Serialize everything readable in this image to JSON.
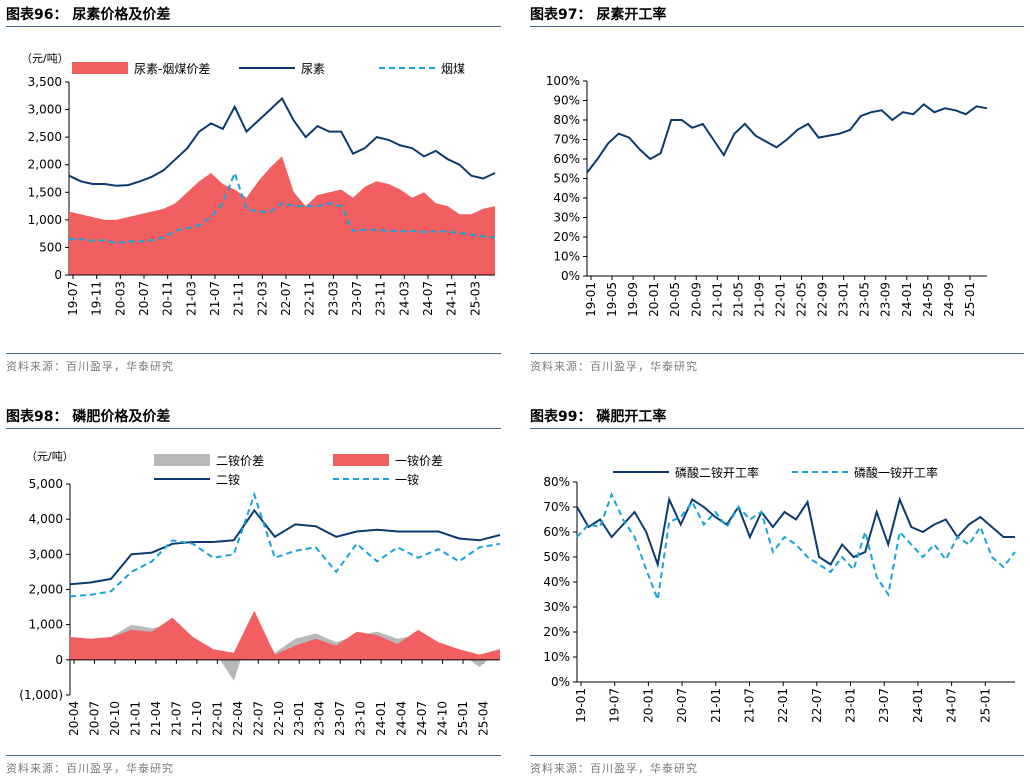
{
  "colors": {
    "navy": "#0d3a6e",
    "cyan": "#1aa3d9",
    "red": "#f25f61",
    "gray": "#b8b8b8",
    "rule": "#4a6a8a"
  },
  "panels": [
    {
      "title": "图表96：  尿素价格及价差",
      "source": "资料来源：百川盈孚，华泰研究"
    },
    {
      "title": "图表97：  尿素开工率",
      "source": "资料来源：百川盈孚，华泰研究"
    },
    {
      "title": "图表98：  磷肥价格及价差",
      "source": "资料来源：百川盈孚，华泰研究"
    },
    {
      "title": "图表99：  磷肥开工率",
      "source": "资料来源：百川盈孚，华泰研究"
    }
  ],
  "chart_data": [
    {
      "type": "line",
      "unit_label": "（元/吨）",
      "ylim": [
        0,
        3500
      ],
      "yticks": [
        "0",
        "500",
        "1,000",
        "1,500",
        "2,000",
        "2,500",
        "3,000",
        "3,500"
      ],
      "xticks": [
        "19-07",
        "19-11",
        "20-03",
        "20-07",
        "20-11",
        "21-03",
        "21-07",
        "21-11",
        "22-03",
        "22-07",
        "22-11",
        "23-03",
        "23-07",
        "23-11",
        "24-03",
        "24-07",
        "24-11",
        "25-03"
      ],
      "x": [
        "19-07",
        "19-09",
        "19-11",
        "20-01",
        "20-03",
        "20-05",
        "20-07",
        "20-09",
        "20-11",
        "21-01",
        "21-03",
        "21-05",
        "21-07",
        "21-09",
        "21-10",
        "21-11",
        "22-01",
        "22-03",
        "22-05",
        "22-07",
        "22-09",
        "22-11",
        "23-01",
        "23-03",
        "23-05",
        "23-07",
        "23-09",
        "23-11",
        "24-01",
        "24-03",
        "24-05",
        "24-07",
        "24-09",
        "24-11",
        "25-01",
        "25-03",
        "25-05"
      ],
      "legend": [
        "尿素-烟煤价差",
        "尿素",
        "烟煤"
      ],
      "series": [
        {
          "name": "尿素-烟煤价差",
          "style": "area",
          "values": [
            1150,
            1100,
            1050,
            1000,
            1000,
            1050,
            1100,
            1150,
            1200,
            1300,
            1500,
            1700,
            1850,
            1650,
            1550,
            1400,
            1700,
            1950,
            2150,
            1500,
            1250,
            1450,
            1500,
            1550,
            1400,
            1600,
            1700,
            1650,
            1550,
            1400,
            1500,
            1300,
            1250,
            1100,
            1100,
            1200,
            1250
          ]
        },
        {
          "name": "尿素",
          "style": "solid",
          "values": [
            1800,
            1700,
            1650,
            1650,
            1620,
            1630,
            1700,
            1780,
            1900,
            2100,
            2300,
            2600,
            2750,
            2650,
            3050,
            2600,
            2800,
            3000,
            3200,
            2800,
            2500,
            2700,
            2600,
            2600,
            2200,
            2300,
            2500,
            2450,
            2350,
            2300,
            2150,
            2250,
            2100,
            2000,
            1800,
            1750,
            1850
          ]
        },
        {
          "name": "烟煤",
          "style": "dashed",
          "values": [
            650,
            650,
            620,
            630,
            580,
            610,
            610,
            630,
            680,
            800,
            850,
            900,
            1050,
            1300,
            1850,
            1200,
            1150,
            1150,
            1300,
            1250,
            1250,
            1250,
            1300,
            1250,
            800,
            820,
            820,
            800,
            790,
            800,
            780,
            790,
            790,
            760,
            730,
            700,
            680
          ]
        }
      ]
    },
    {
      "type": "line",
      "ylim": [
        0,
        100
      ],
      "yticks": [
        "0%",
        "10%",
        "20%",
        "30%",
        "40%",
        "50%",
        "60%",
        "70%",
        "80%",
        "90%",
        "100%"
      ],
      "xticks": [
        "19-01",
        "19-05",
        "19-09",
        "20-01",
        "20-05",
        "20-09",
        "21-01",
        "21-05",
        "21-09",
        "22-01",
        "22-05",
        "22-09",
        "23-01",
        "23-05",
        "23-09",
        "24-01",
        "24-05",
        "24-09",
        "25-01"
      ],
      "x": [
        "19-01",
        "19-03",
        "19-05",
        "19-07",
        "19-09",
        "19-11",
        "20-01",
        "20-03",
        "20-05",
        "20-07",
        "20-09",
        "20-11",
        "21-01",
        "21-03",
        "21-05",
        "21-07",
        "21-09",
        "21-11",
        "22-01",
        "22-03",
        "22-05",
        "22-07",
        "22-09",
        "22-11",
        "23-01",
        "23-03",
        "23-05",
        "23-07",
        "23-09",
        "23-11",
        "24-01",
        "24-03",
        "24-05",
        "24-07",
        "24-09",
        "24-11",
        "25-01",
        "25-03",
        "25-05"
      ],
      "series": [
        {
          "name": "",
          "style": "solid",
          "values": [
            53,
            60,
            68,
            73,
            71,
            65,
            60,
            63,
            80,
            80,
            76,
            78,
            70,
            62,
            73,
            78,
            72,
            69,
            66,
            70,
            75,
            78,
            71,
            72,
            73,
            75,
            82,
            84,
            85,
            80,
            84,
            83,
            88,
            84,
            86,
            85,
            83,
            87,
            86
          ]
        }
      ]
    },
    {
      "type": "line",
      "unit_label": "（元/吨）",
      "ylim": [
        -1000,
        5000
      ],
      "yticks": [
        "(1,000)",
        "0",
        "1,000",
        "2,000",
        "3,000",
        "4,000",
        "5,000"
      ],
      "xticks": [
        "20-04",
        "20-07",
        "20-10",
        "21-01",
        "21-04",
        "21-07",
        "21-10",
        "22-01",
        "22-04",
        "22-07",
        "22-10",
        "23-01",
        "23-04",
        "23-07",
        "23-10",
        "24-01",
        "24-04",
        "24-07",
        "24-10",
        "25-01",
        "25-04"
      ],
      "x": [
        "20-04",
        "20-07",
        "20-10",
        "21-01",
        "21-04",
        "21-07",
        "21-10",
        "22-01",
        "22-04",
        "22-07",
        "22-10",
        "23-01",
        "23-04",
        "23-07",
        "23-10",
        "24-01",
        "24-04",
        "24-07",
        "24-10",
        "25-01",
        "25-04",
        "25-06"
      ],
      "legend": [
        "二铵价差",
        "一铵价差",
        "二铵",
        "一铵"
      ],
      "series": [
        {
          "name": "二铵价差",
          "style": "area",
          "values": [
            650,
            600,
            650,
            1000,
            900,
            1000,
            650,
            300,
            -600,
            1200,
            200,
            600,
            750,
            500,
            700,
            800,
            600,
            700,
            400,
            200,
            -200,
            300
          ]
        },
        {
          "name": "一铵价差",
          "style": "area",
          "values": [
            650,
            600,
            650,
            850,
            800,
            1200,
            650,
            300,
            200,
            1400,
            150,
            400,
            600,
            400,
            800,
            700,
            450,
            850,
            500,
            300,
            150,
            300
          ]
        },
        {
          "name": "二铵",
          "style": "solid",
          "values": [
            2150,
            2200,
            2300,
            3000,
            3050,
            3300,
            3350,
            3350,
            3400,
            4250,
            3500,
            3850,
            3800,
            3500,
            3650,
            3700,
            3650,
            3650,
            3650,
            3450,
            3400,
            3550
          ]
        },
        {
          "name": "一铵",
          "style": "dashed",
          "values": [
            1800,
            1850,
            1950,
            2500,
            2800,
            3400,
            3300,
            2900,
            3000,
            4700,
            2900,
            3100,
            3200,
            2500,
            3300,
            2800,
            3200,
            2900,
            3150,
            2800,
            3200,
            3300
          ]
        }
      ]
    },
    {
      "type": "line",
      "ylim": [
        0,
        80
      ],
      "yticks": [
        "0%",
        "10%",
        "20%",
        "30%",
        "40%",
        "50%",
        "60%",
        "70%",
        "80%"
      ],
      "xticks": [
        "19-01",
        "19-07",
        "20-01",
        "20-07",
        "21-01",
        "21-07",
        "22-01",
        "22-07",
        "23-01",
        "23-07",
        "24-01",
        "24-07",
        "25-01"
      ],
      "x": [
        "19-01",
        "19-03",
        "19-05",
        "19-07",
        "19-09",
        "19-11",
        "20-01",
        "20-03",
        "20-05",
        "20-07",
        "20-09",
        "20-11",
        "21-01",
        "21-03",
        "21-05",
        "21-07",
        "21-09",
        "21-11",
        "22-01",
        "22-03",
        "22-05",
        "22-07",
        "22-09",
        "22-11",
        "23-01",
        "23-03",
        "23-05",
        "23-07",
        "23-09",
        "23-11",
        "24-01",
        "24-03",
        "24-05",
        "24-07",
        "24-09",
        "24-11",
        "25-01",
        "25-03",
        "25-05"
      ],
      "legend": [
        "磷酸二铵开工率",
        "磷酸一铵开工率"
      ],
      "series": [
        {
          "name": "磷酸二铵开工率",
          "style": "solid",
          "values": [
            70,
            62,
            65,
            58,
            63,
            68,
            60,
            47,
            73,
            63,
            73,
            70,
            66,
            63,
            70,
            58,
            68,
            62,
            68,
            65,
            72,
            50,
            47,
            55,
            50,
            52,
            68,
            55,
            73,
            62,
            60,
            63,
            65,
            58,
            63,
            66,
            62,
            58,
            58
          ]
        },
        {
          "name": "磷酸一铵开工率",
          "style": "dashed",
          "values": [
            58,
            63,
            62,
            75,
            65,
            58,
            45,
            33,
            64,
            66,
            72,
            63,
            68,
            62,
            70,
            65,
            68,
            52,
            58,
            55,
            50,
            47,
            44,
            50,
            45,
            60,
            42,
            35,
            60,
            55,
            50,
            55,
            49,
            58,
            55,
            62,
            50,
            46,
            52
          ]
        }
      ]
    }
  ]
}
